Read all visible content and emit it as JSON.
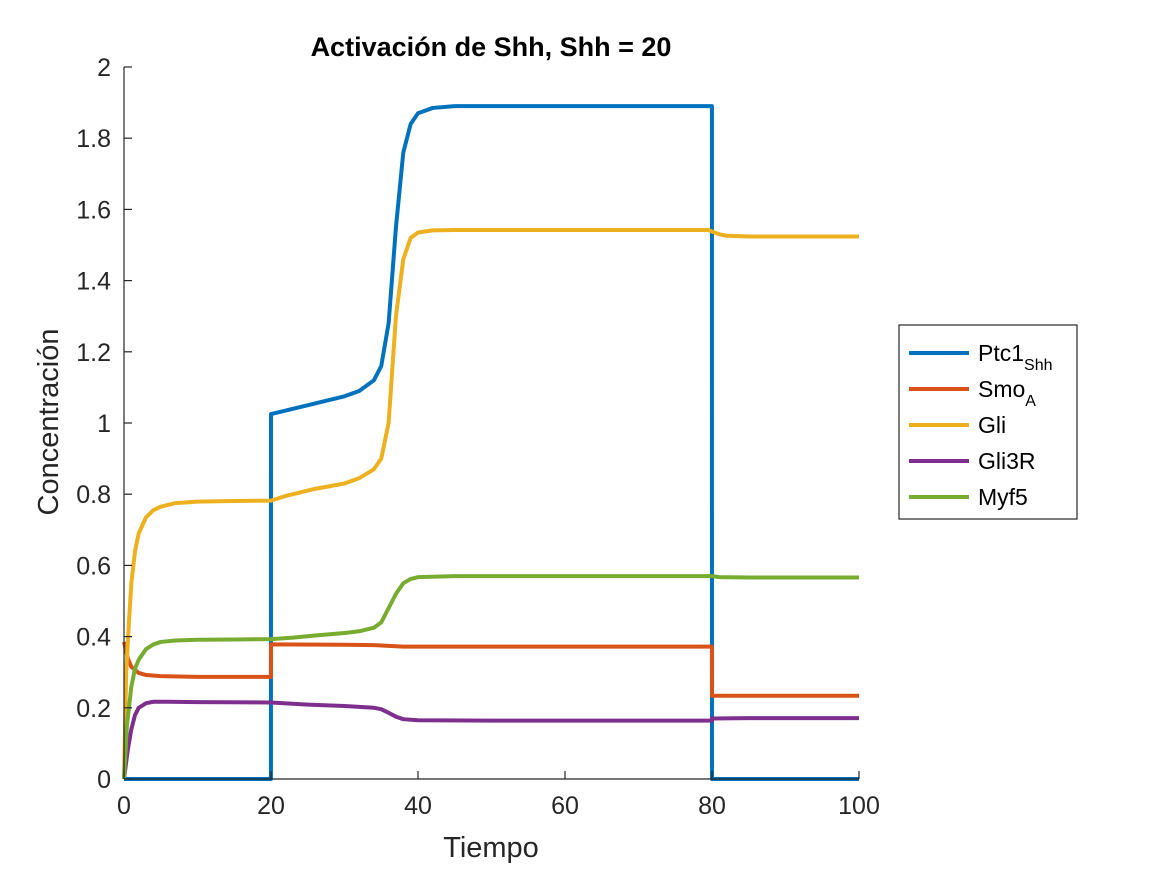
{
  "chart_data": {
    "type": "line",
    "title": "Activación de Shh, Shh = 20",
    "xlabel": "Tiempo",
    "ylabel": "Concentración",
    "xlim": [
      0,
      100
    ],
    "ylim": [
      0,
      2
    ],
    "xticks": [
      0,
      20,
      40,
      60,
      80,
      100
    ],
    "xtick_labels": [
      "0",
      "20",
      "40",
      "60",
      "80",
      "100"
    ],
    "yticks": [
      0,
      0.2,
      0.4,
      0.6,
      0.8,
      1,
      1.2,
      1.4,
      1.6,
      1.8,
      2
    ],
    "ytick_labels": [
      "0",
      "0.2",
      "0.4",
      "0.6",
      "0.8",
      "1",
      "1.2",
      "1.4",
      "1.6",
      "1.8",
      "2"
    ],
    "grid": false,
    "legend_position": "right",
    "series": [
      {
        "name": "Ptc1",
        "name_sub": "Shh",
        "color": "#0072BD",
        "points": [
          [
            0,
            0
          ],
          [
            19.99,
            0
          ],
          [
            20,
            1.025
          ],
          [
            22,
            1.035
          ],
          [
            26,
            1.055
          ],
          [
            30,
            1.075
          ],
          [
            32,
            1.09
          ],
          [
            34,
            1.12
          ],
          [
            35,
            1.16
          ],
          [
            36,
            1.28
          ],
          [
            37,
            1.55
          ],
          [
            38,
            1.76
          ],
          [
            39,
            1.84
          ],
          [
            40,
            1.87
          ],
          [
            42,
            1.885
          ],
          [
            45,
            1.89
          ],
          [
            50,
            1.89
          ],
          [
            60,
            1.89
          ],
          [
            70,
            1.89
          ],
          [
            79.99,
            1.89
          ],
          [
            80,
            0
          ],
          [
            100,
            0
          ]
        ]
      },
      {
        "name": "Smo",
        "name_sub": "A",
        "color": "#D95319",
        "points": [
          [
            0,
            0.385
          ],
          [
            0.5,
            0.34
          ],
          [
            1,
            0.315
          ],
          [
            2,
            0.298
          ],
          [
            3,
            0.292
          ],
          [
            5,
            0.289
          ],
          [
            10,
            0.287
          ],
          [
            19.99,
            0.287
          ],
          [
            20,
            0.378
          ],
          [
            30,
            0.377
          ],
          [
            34,
            0.376
          ],
          [
            36,
            0.374
          ],
          [
            38,
            0.372
          ],
          [
            40,
            0.372
          ],
          [
            60,
            0.372
          ],
          [
            79.99,
            0.372
          ],
          [
            80,
            0.234
          ],
          [
            100,
            0.234
          ]
        ]
      },
      {
        "name": "Gli",
        "name_sub": "",
        "color": "#EDB120",
        "points": [
          [
            0,
            0
          ],
          [
            0.3,
            0.3
          ],
          [
            0.7,
            0.45
          ],
          [
            1,
            0.55
          ],
          [
            1.5,
            0.64
          ],
          [
            2,
            0.69
          ],
          [
            3,
            0.735
          ],
          [
            4,
            0.755
          ],
          [
            5,
            0.765
          ],
          [
            7,
            0.775
          ],
          [
            10,
            0.779
          ],
          [
            15,
            0.781
          ],
          [
            20,
            0.782
          ],
          [
            22,
            0.795
          ],
          [
            26,
            0.815
          ],
          [
            30,
            0.83
          ],
          [
            32,
            0.845
          ],
          [
            34,
            0.87
          ],
          [
            35,
            0.9
          ],
          [
            36,
            1.0
          ],
          [
            37,
            1.3
          ],
          [
            38,
            1.46
          ],
          [
            39,
            1.52
          ],
          [
            40,
            1.535
          ],
          [
            42,
            1.541
          ],
          [
            45,
            1.542
          ],
          [
            60,
            1.542
          ],
          [
            79.5,
            1.542
          ],
          [
            80,
            1.538
          ],
          [
            81,
            1.53
          ],
          [
            82,
            1.526
          ],
          [
            85,
            1.524
          ],
          [
            100,
            1.524
          ]
        ]
      },
      {
        "name": "Gli3R",
        "name_sub": "",
        "color": "#7E2F8E",
        "points": [
          [
            0,
            0
          ],
          [
            0.5,
            0.08
          ],
          [
            1,
            0.14
          ],
          [
            1.5,
            0.18
          ],
          [
            2,
            0.2
          ],
          [
            3,
            0.213
          ],
          [
            4,
            0.217
          ],
          [
            6,
            0.217
          ],
          [
            10,
            0.216
          ],
          [
            19.99,
            0.215
          ],
          [
            20,
            0.215
          ],
          [
            25,
            0.209
          ],
          [
            30,
            0.205
          ],
          [
            34,
            0.2
          ],
          [
            35,
            0.196
          ],
          [
            36,
            0.186
          ],
          [
            37,
            0.175
          ],
          [
            38,
            0.168
          ],
          [
            40,
            0.165
          ],
          [
            50,
            0.164
          ],
          [
            60,
            0.164
          ],
          [
            79.99,
            0.164
          ],
          [
            80,
            0.17
          ],
          [
            85,
            0.171
          ],
          [
            100,
            0.171
          ]
        ]
      },
      {
        "name": "Myf5",
        "name_sub": "",
        "color": "#77AC30",
        "points": [
          [
            0,
            0
          ],
          [
            0.4,
            0.15
          ],
          [
            1,
            0.26
          ],
          [
            1.5,
            0.31
          ],
          [
            2,
            0.335
          ],
          [
            3,
            0.365
          ],
          [
            4,
            0.378
          ],
          [
            5,
            0.385
          ],
          [
            7,
            0.389
          ],
          [
            10,
            0.391
          ],
          [
            15,
            0.392
          ],
          [
            20,
            0.393
          ],
          [
            23,
            0.397
          ],
          [
            26,
            0.403
          ],
          [
            30,
            0.41
          ],
          [
            32,
            0.415
          ],
          [
            34,
            0.425
          ],
          [
            35,
            0.44
          ],
          [
            36,
            0.48
          ],
          [
            37,
            0.52
          ],
          [
            38,
            0.55
          ],
          [
            39,
            0.562
          ],
          [
            40,
            0.567
          ],
          [
            45,
            0.57
          ],
          [
            60,
            0.57
          ],
          [
            80,
            0.57
          ],
          [
            81,
            0.567
          ],
          [
            85,
            0.566
          ],
          [
            100,
            0.566
          ]
        ]
      }
    ]
  }
}
